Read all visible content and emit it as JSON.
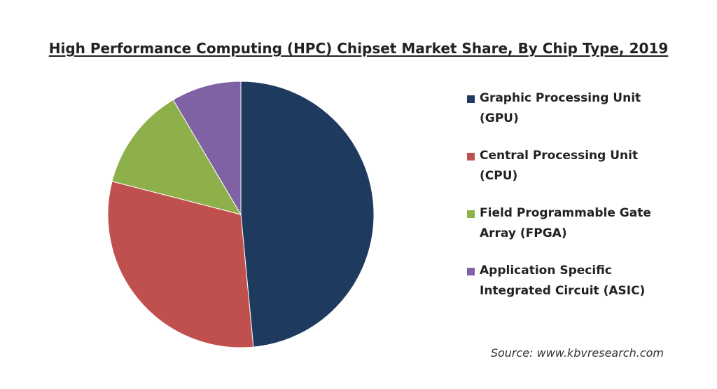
{
  "chart_data": {
    "type": "pie",
    "title": "High Performance Computing (HPC) Chipset Market Share, By Chip Type, 2019",
    "categories": [
      "Graphic Processing Unit (GPU)",
      "Central Processing Unit (CPU)",
      "Field Programmable Gate Array (FPGA)",
      "Application Specific Integrated Circuit (ASIC)"
    ],
    "values": [
      48.5,
      30.5,
      12.5,
      8.5
    ],
    "colors": [
      "#1f3a5f",
      "#c0504d",
      "#8db04a",
      "#7e62a3"
    ],
    "legend_position": "right",
    "source": "Source: www.kbvresearch.com"
  }
}
